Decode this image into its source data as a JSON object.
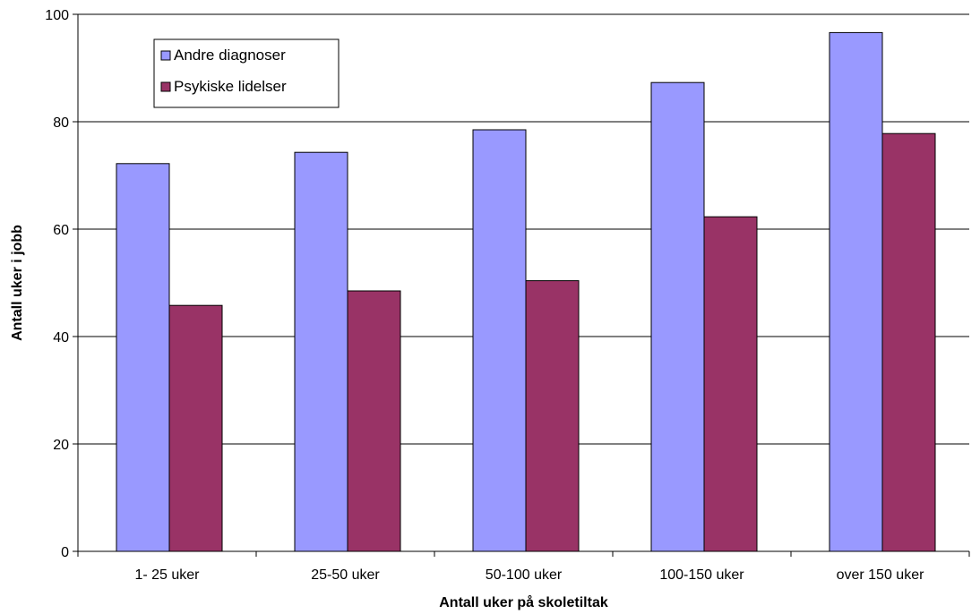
{
  "chart_data": {
    "type": "bar",
    "categories": [
      "1- 25 uker",
      "25-50 uker",
      "50-100 uker",
      "100-150 uker",
      "over 150 uker"
    ],
    "series": [
      {
        "name": "Andre diagnoser",
        "color": "#9999ff",
        "values": [
          72.2,
          74.3,
          78.5,
          87.3,
          96.6
        ]
      },
      {
        "name": "Psykiske lidelser",
        "color": "#993366",
        "values": [
          45.8,
          48.5,
          50.4,
          62.3,
          77.8
        ]
      }
    ],
    "xlabel": "Antall uker på skoletiltak",
    "ylabel": "Antall uker i jobb",
    "ylim": [
      0,
      100
    ],
    "yticks": [
      0,
      20,
      40,
      60,
      80,
      100
    ],
    "grid": true,
    "legend": "top-left"
  }
}
